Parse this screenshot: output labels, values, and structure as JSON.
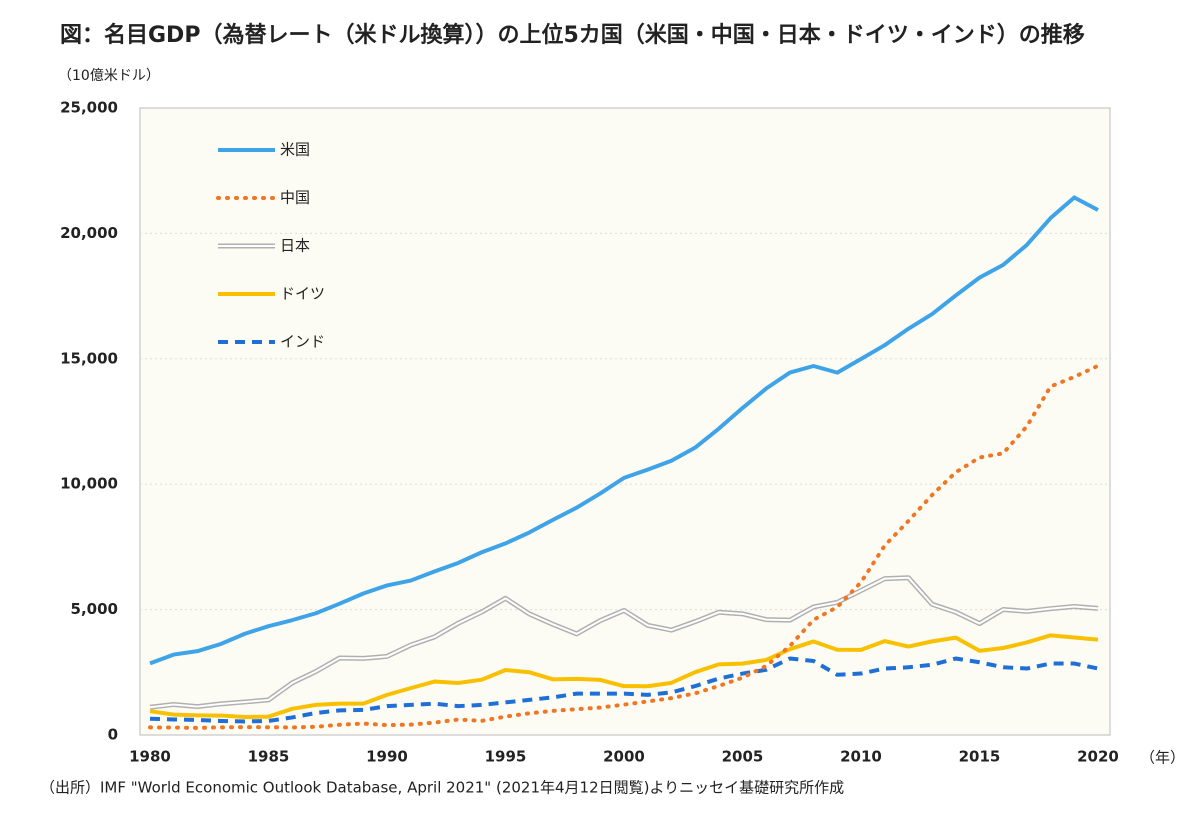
{
  "chart_data": {
    "type": "line",
    "title": "図：名目GDP（為替レート（米ドル換算））の上位5カ国（米国・中国・日本・ドイツ・インド）の推移",
    "y_unit": "（10億米ドル）",
    "x_unit": "（年）",
    "source": "（出所）IMF \"World Economic Outlook Database, April 2021\" (2021年4月12日閲覧)よりニッセイ基礎研究所作成",
    "x": [
      1980,
      1981,
      1982,
      1983,
      1984,
      1985,
      1986,
      1987,
      1988,
      1989,
      1990,
      1991,
      1992,
      1993,
      1994,
      1995,
      1996,
      1997,
      1998,
      1999,
      2000,
      2001,
      2002,
      2003,
      2004,
      2005,
      2006,
      2007,
      2008,
      2009,
      2010,
      2011,
      2012,
      2013,
      2014,
      2015,
      2016,
      2017,
      2018,
      2019,
      2020
    ],
    "xlim": [
      1980,
      2020
    ],
    "xticks": [
      1980,
      1985,
      1990,
      1995,
      2000,
      2005,
      2010,
      2015,
      2020
    ],
    "ylim": [
      0,
      25000
    ],
    "yticks": [
      0,
      {
        "value": 5000,
        "label": "5,000"
      },
      {
        "value": 10000,
        "label": "10,000"
      },
      {
        "value": 15000,
        "label": "15,000"
      },
      {
        "value": 20000,
        "label": "20,000"
      },
      {
        "value": 25000,
        "label": "25,000"
      }
    ],
    "grid": true,
    "legend": "upper left",
    "series": [
      {
        "name": "米国",
        "color": "#3fa3e8",
        "line_style": "solid",
        "values": [
          2857,
          3207,
          3343,
          3634,
          4037,
          4339,
          4580,
          4855,
          5236,
          5642,
          5963,
          6158,
          6520,
          6859,
          7287,
          7640,
          8073,
          8578,
          9063,
          9631,
          10252,
          10582,
          10936,
          11458,
          12214,
          13037,
          13815,
          14452,
          14713,
          14449,
          14992,
          15543,
          16197,
          16785,
          17527,
          18238,
          18745,
          19543,
          20612,
          21433,
          20933
        ]
      },
      {
        "name": "中国",
        "color": "#f07622",
        "line_style": "dotted",
        "values": [
          303,
          296,
          285,
          305,
          316,
          310,
          301,
          327,
          408,
          457,
          395,
          415,
          494,
          617,
          564,
          734,
          864,
          962,
          1029,
          1094,
          1211,
          1339,
          1471,
          1660,
          1955,
          2286,
          2752,
          3550,
          4594,
          5102,
          6087,
          7552,
          8532,
          9570,
          10476,
          11062,
          11233,
          12310,
          13895,
          14280,
          14723
        ]
      },
      {
        "name": "日本",
        "color": "#b0b0b0",
        "line_style": "double",
        "values": [
          1105,
          1218,
          1134,
          1243,
          1318,
          1398,
          2078,
          2532,
          3072,
          3054,
          3133,
          3585,
          3909,
          4454,
          4907,
          5449,
          4833,
          4414,
          4033,
          4562,
          4968,
          4374,
          4183,
          4519,
          4893,
          4831,
          4601,
          4579,
          5106,
          5289,
          5759,
          6233,
          6272,
          5212,
          4897,
          4444,
          5004,
          4931,
          5037,
          5123,
          5049
        ]
      },
      {
        "name": "ドイツ",
        "color": "#f8c000",
        "line_style": "solid",
        "values": [
          950,
          812,
          785,
          775,
          716,
          734,
          1044,
          1200,
          1250,
          1250,
          1600,
          1869,
          2131,
          2072,
          2206,
          2591,
          2504,
          2219,
          2240,
          2196,
          1948,
          1945,
          2079,
          2505,
          2815,
          2847,
          2993,
          3421,
          3730,
          3398,
          3396,
          3744,
          3527,
          3733,
          3884,
          3357,
          3469,
          3690,
          3974,
          3889,
          3803
        ]
      },
      {
        "name": "インド",
        "color": "#1f6fd6",
        "line_style": "dashed",
        "values": [
          650,
          620,
          600,
          560,
          540,
          560,
          700,
          880,
          980,
          1000,
          1150,
          1200,
          1250,
          1150,
          1200,
          1300,
          1400,
          1500,
          1650,
          1650,
          1650,
          1600,
          1700,
          1950,
          2250,
          2450,
          2600,
          3050,
          2950,
          2400,
          2450,
          2650,
          2700,
          2800,
          3050,
          2900,
          2700,
          2650,
          2850,
          2850,
          2650
        ]
      }
    ]
  }
}
